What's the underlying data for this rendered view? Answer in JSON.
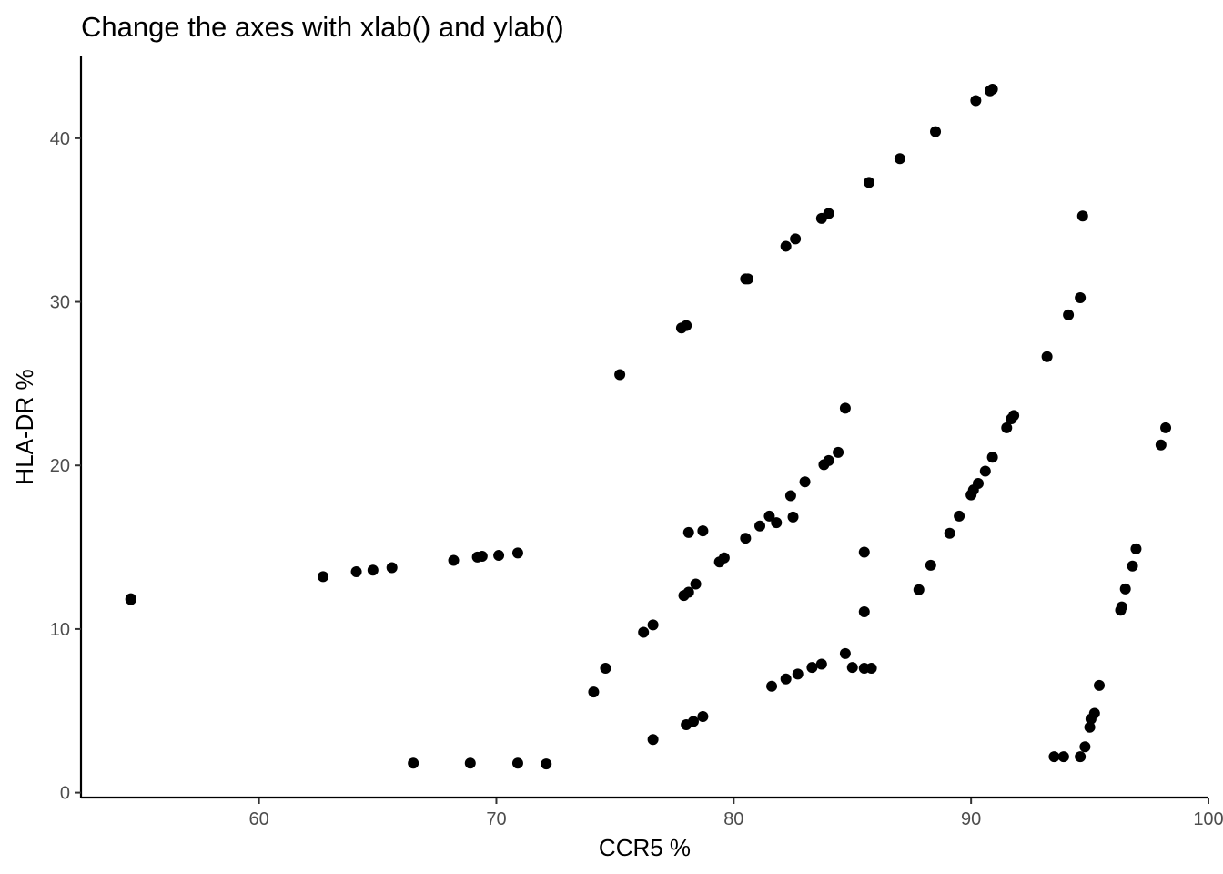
{
  "chart_data": {
    "type": "scatter",
    "title": "Change the axes with xlab() and ylab()",
    "xlabel": "CCR5 %",
    "ylabel": "HLA-DR %",
    "xlim": [
      52.5,
      100
    ],
    "ylim": [
      -0.3,
      45
    ],
    "xticks": [
      60,
      70,
      80,
      90,
      100
    ],
    "yticks": [
      0,
      10,
      20,
      30,
      40
    ],
    "grid": false,
    "legend": "none",
    "point_color": "#000000",
    "points": [
      [
        54.6,
        11.85
      ],
      [
        54.6,
        11.8
      ],
      [
        62.7,
        13.2
      ],
      [
        64.1,
        13.5
      ],
      [
        64.8,
        13.6
      ],
      [
        65.6,
        13.75
      ],
      [
        68.2,
        14.2
      ],
      [
        69.2,
        14.4
      ],
      [
        69.4,
        14.45
      ],
      [
        70.1,
        14.5
      ],
      [
        70.9,
        14.65
      ],
      [
        66.5,
        1.8
      ],
      [
        68.9,
        1.8
      ],
      [
        70.9,
        1.8
      ],
      [
        72.1,
        1.75
      ],
      [
        74.1,
        6.15
      ],
      [
        74.6,
        7.6
      ],
      [
        76.2,
        9.8
      ],
      [
        76.6,
        10.25
      ],
      [
        77.9,
        12.05
      ],
      [
        78.1,
        12.25
      ],
      [
        78.4,
        12.75
      ],
      [
        79.4,
        14.1
      ],
      [
        79.6,
        14.35
      ],
      [
        80.5,
        15.55
      ],
      [
        81.1,
        16.3
      ],
      [
        81.5,
        16.9
      ],
      [
        81.8,
        16.5
      ],
      [
        82.5,
        16.85
      ],
      [
        82.4,
        18.15
      ],
      [
        83.0,
        19.0
      ],
      [
        83.8,
        20.05
      ],
      [
        84.0,
        20.3
      ],
      [
        84.4,
        20.8
      ],
      [
        84.7,
        23.5
      ],
      [
        78.1,
        15.9
      ],
      [
        78.7,
        16.0
      ],
      [
        75.2,
        25.55
      ],
      [
        77.8,
        28.4
      ],
      [
        78.0,
        28.55
      ],
      [
        80.5,
        31.4
      ],
      [
        80.6,
        31.4
      ],
      [
        82.2,
        33.4
      ],
      [
        82.6,
        33.85
      ],
      [
        83.7,
        35.1
      ],
      [
        84.0,
        35.4
      ],
      [
        85.7,
        37.3
      ],
      [
        87.0,
        38.75
      ],
      [
        88.5,
        40.4
      ],
      [
        90.2,
        42.3
      ],
      [
        90.8,
        42.9
      ],
      [
        90.9,
        43.0
      ],
      [
        76.6,
        3.25
      ],
      [
        78.0,
        4.15
      ],
      [
        78.3,
        4.35
      ],
      [
        78.7,
        4.65
      ],
      [
        81.6,
        6.5
      ],
      [
        82.2,
        6.95
      ],
      [
        82.7,
        7.25
      ],
      [
        83.3,
        7.65
      ],
      [
        83.7,
        7.85
      ],
      [
        84.7,
        8.5
      ],
      [
        85.0,
        7.65
      ],
      [
        85.5,
        7.6
      ],
      [
        85.8,
        7.6
      ],
      [
        85.5,
        11.05
      ],
      [
        85.5,
        14.7
      ],
      [
        87.8,
        12.4
      ],
      [
        88.3,
        13.9
      ],
      [
        89.1,
        15.85
      ],
      [
        89.5,
        16.9
      ],
      [
        90.0,
        18.2
      ],
      [
        90.1,
        18.5
      ],
      [
        90.3,
        18.9
      ],
      [
        90.6,
        19.65
      ],
      [
        90.9,
        20.5
      ],
      [
        91.5,
        22.3
      ],
      [
        91.7,
        22.85
      ],
      [
        91.8,
        23.05
      ],
      [
        93.2,
        26.65
      ],
      [
        94.1,
        29.2
      ],
      [
        94.6,
        30.25
      ],
      [
        94.7,
        35.25
      ],
      [
        93.5,
        2.2
      ],
      [
        93.9,
        2.2
      ],
      [
        94.6,
        2.2
      ],
      [
        94.8,
        2.8
      ],
      [
        95.0,
        4.0
      ],
      [
        95.05,
        4.5
      ],
      [
        95.2,
        4.85
      ],
      [
        95.4,
        6.55
      ],
      [
        96.3,
        11.15
      ],
      [
        96.35,
        11.35
      ],
      [
        96.5,
        12.45
      ],
      [
        96.8,
        13.85
      ],
      [
        96.95,
        14.9
      ],
      [
        98.0,
        21.25
      ],
      [
        98.2,
        22.3
      ]
    ]
  }
}
